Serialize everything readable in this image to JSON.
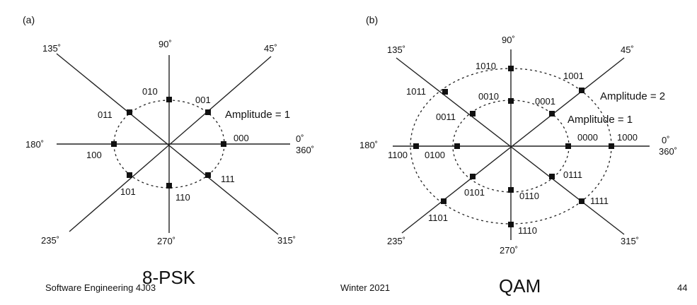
{
  "panel_a": {
    "tag": "(a)",
    "angles": {
      "a90": "90˚",
      "a45": "45˚",
      "a135": "135˚",
      "a180": "180˚",
      "a0": "0˚",
      "a360": "360˚",
      "a235": "235˚",
      "a270": "270˚",
      "a315": "315˚"
    },
    "amplitude_label": "Amplitude = 1",
    "points": [
      "000",
      "001",
      "010",
      "011",
      "100",
      "101",
      "110",
      "111"
    ],
    "caption": "8-PSK"
  },
  "panel_b": {
    "tag": "(b)",
    "angles": {
      "a90": "90˚",
      "a45": "45˚",
      "a135": "135˚",
      "a180": "180˚",
      "a0": "0˚",
      "a360": "360˚",
      "a235": "235˚",
      "a270": "270˚",
      "a315": "315˚"
    },
    "amplitude_outer_label": "Amplitude = 2",
    "amplitude_inner_label": "Amplitude = 1",
    "inner_points": [
      "0000",
      "0001",
      "0010",
      "0011",
      "0100",
      "0101",
      "0110",
      "0111"
    ],
    "outer_points": [
      "1000",
      "1001",
      "1010",
      "1011",
      "1100",
      "1101",
      "1110",
      "1111"
    ],
    "caption": "QAM"
  },
  "footer": {
    "course": "Software Engineering 4J03",
    "term": "Winter 2021",
    "page": "44"
  }
}
